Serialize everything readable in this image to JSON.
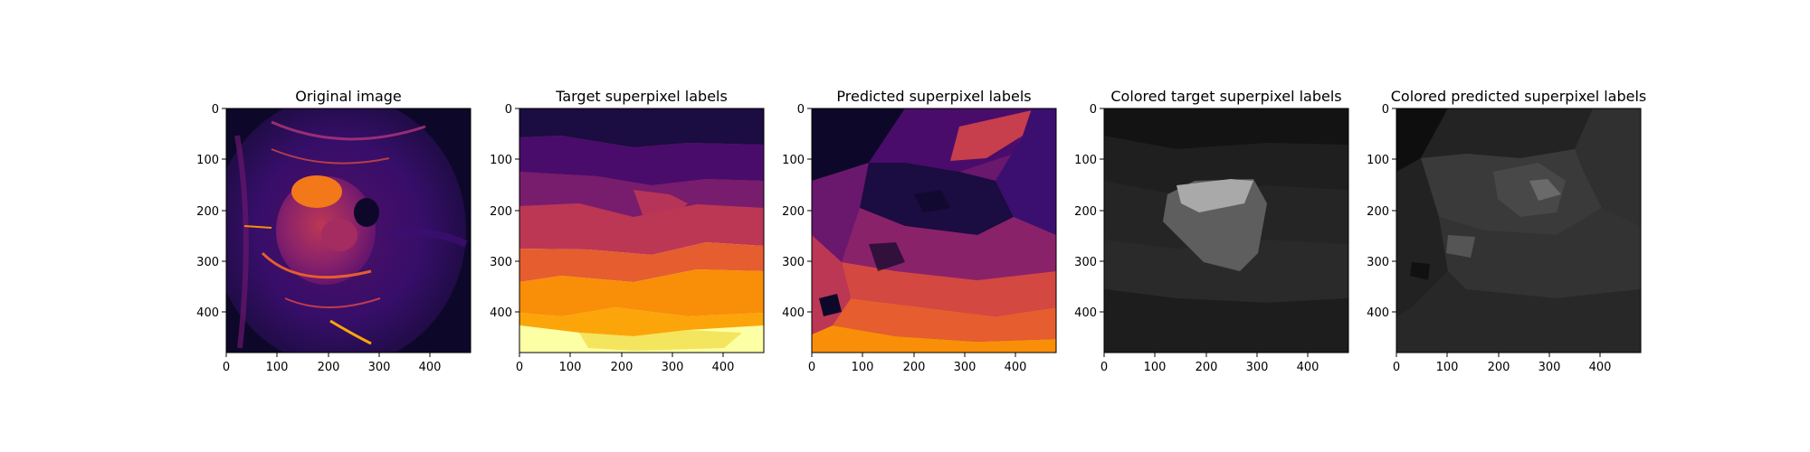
{
  "chart_data": [
    {
      "type": "heatmap",
      "title": "Original image",
      "colormap": "inferno",
      "xlim": [
        0,
        480
      ],
      "ylim": [
        480,
        0
      ],
      "x_ticks": [
        0,
        100,
        200,
        300,
        400
      ],
      "y_ticks": [
        0,
        100,
        200,
        300,
        400
      ]
    },
    {
      "type": "heatmap",
      "title": "Target superpixel labels",
      "colormap": "inferno",
      "xlim": [
        0,
        480
      ],
      "ylim": [
        480,
        0
      ],
      "x_ticks": [
        0,
        100,
        200,
        300,
        400
      ],
      "y_ticks": [
        0,
        100,
        200,
        300,
        400
      ]
    },
    {
      "type": "heatmap",
      "title": "Predicted superpixel labels",
      "colormap": "inferno",
      "xlim": [
        0,
        480
      ],
      "ylim": [
        480,
        0
      ],
      "x_ticks": [
        0,
        100,
        200,
        300,
        400
      ],
      "y_ticks": [
        0,
        100,
        200,
        300,
        400
      ]
    },
    {
      "type": "heatmap",
      "title": "Colored target superpixel labels",
      "colormap": "gray",
      "xlim": [
        0,
        480
      ],
      "ylim": [
        480,
        0
      ],
      "x_ticks": [
        0,
        100,
        200,
        300,
        400
      ],
      "y_ticks": [
        0,
        100,
        200,
        300,
        400
      ]
    },
    {
      "type": "heatmap",
      "title": "Colored predicted superpixel labels",
      "colormap": "gray",
      "xlim": [
        0,
        480
      ],
      "ylim": [
        480,
        0
      ],
      "x_ticks": [
        0,
        100,
        200,
        300,
        400
      ],
      "y_ticks": [
        0,
        100,
        200,
        300,
        400
      ]
    }
  ]
}
